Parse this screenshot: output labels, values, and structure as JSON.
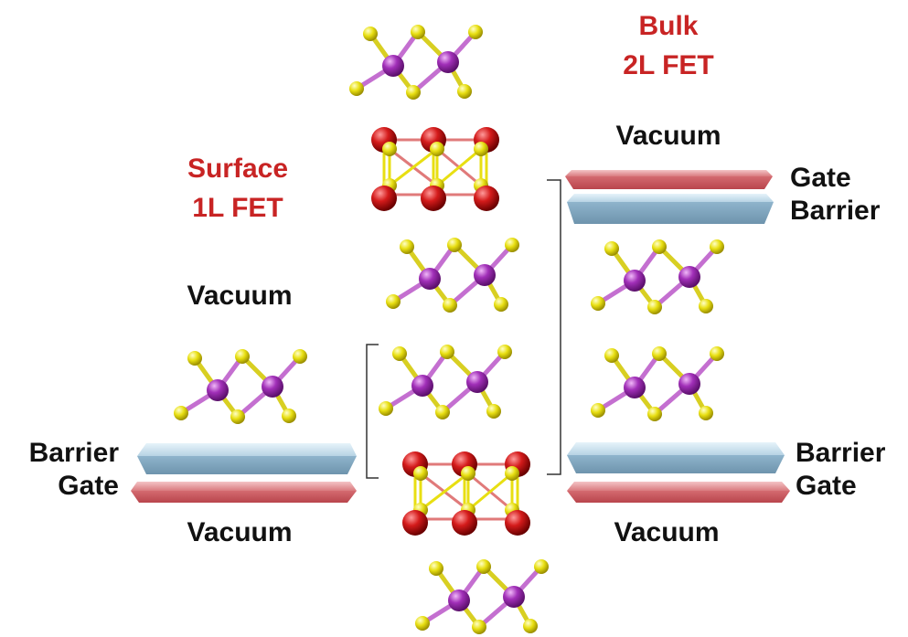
{
  "labels": {
    "bulk_line1": "Bulk",
    "bulk_line2": "2L FET",
    "surface_line1": "Surface",
    "surface_line2": "1L FET",
    "vacuum_top_right": "Vacuum",
    "gate_top_right": "Gate",
    "barrier_top_right": "Barrier",
    "vacuum_mid_left": "Vacuum",
    "barrier_left": "Barrier",
    "gate_left": "Gate",
    "vacuum_bottom_left": "Vacuum",
    "barrier_right": "Barrier",
    "gate_right": "Gate",
    "vacuum_bottom_right": "Vacuum"
  },
  "colors": {
    "title_red": "#c82424",
    "text_black": "#111111",
    "atom_purple": "#a12fb8",
    "atom_yellow": "#e8df12",
    "atom_red": "#d41b1b",
    "gate_slab": "#d97a7e",
    "barrier_slab": "#8fb4cc",
    "bracket": "#333333"
  }
}
